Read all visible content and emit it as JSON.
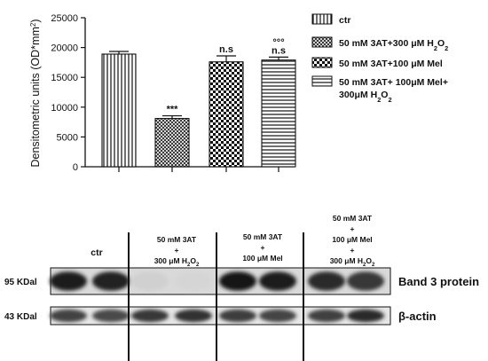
{
  "chart_data": {
    "type": "bar",
    "ylabel": "Densitometric units (OD*mm²)",
    "ylabel_plain": "Densitometric units (OD*mm",
    "ylabel_sup": "2",
    "ylim": [
      0,
      25000
    ],
    "yticks": [
      0,
      5000,
      10000,
      15000,
      20000,
      25000
    ],
    "grid": false,
    "legend_position": "right",
    "categories": [
      "ctr",
      "50 mM 3AT+300 μM H2O2",
      "50 mM 3AT+100 μM Mel",
      "50 mM 3AT+ 100μM Mel+ 300μM H2O2"
    ],
    "values": [
      18900,
      8100,
      17600,
      17900
    ],
    "errors": [
      450,
      450,
      1000,
      500
    ],
    "annotations": [
      {
        "bar": 1,
        "lines": [
          "***"
        ]
      },
      {
        "bar": 2,
        "lines": [
          "n.s"
        ]
      },
      {
        "bar": 3,
        "lines": [
          "°°°",
          "n.s"
        ]
      }
    ],
    "legend": [
      {
        "pattern": "vertical-lines",
        "parts": [
          {
            "t": "ctr"
          }
        ]
      },
      {
        "pattern": "crosshatch",
        "parts": [
          {
            "t": "50 mM 3AT+300 μM H"
          },
          {
            "t": "2",
            "sub": true
          },
          {
            "t": "O"
          },
          {
            "t": "2",
            "sub": true
          }
        ]
      },
      {
        "pattern": "checker",
        "parts": [
          {
            "t": "50 mM  3AT+100 μM Mel"
          }
        ]
      },
      {
        "pattern": "horizontal-lines",
        "parts": [
          {
            "t": "50 mM 3AT+ 100μM Mel+"
          }
        ],
        "line2": [
          {
            "t": "300μM H"
          },
          {
            "t": "2",
            "sub": true
          },
          {
            "t": "O"
          },
          {
            "t": "2",
            "sub": true
          }
        ]
      }
    ]
  },
  "blot": {
    "lanes": [
      {
        "lines": [
          [
            {
              "t": "ctr"
            }
          ]
        ]
      },
      {
        "lines": [
          [
            {
              "t": "50 mM 3AT"
            }
          ],
          [
            {
              "t": "+"
            }
          ],
          [
            {
              "t": "300 μM H"
            },
            {
              "t": "2",
              "sub": true
            },
            {
              "t": "O"
            },
            {
              "t": "2",
              "sub": true
            }
          ]
        ]
      },
      {
        "lines": [
          [
            {
              "t": "50 mM 3AT"
            }
          ],
          [
            {
              "t": "+"
            }
          ],
          [
            {
              "t": "100 μM Mel"
            }
          ]
        ]
      },
      {
        "lines": [
          [
            {
              "t": "50 mM 3AT"
            }
          ],
          [
            {
              "t": "+"
            }
          ],
          [
            {
              "t": "100 μM Mel"
            }
          ],
          [
            {
              "t": "+"
            }
          ],
          [
            {
              "t": "300 μM H"
            },
            {
              "t": "2",
              "sub": true
            },
            {
              "t": "O"
            },
            {
              "t": "2",
              "sub": true
            }
          ]
        ]
      }
    ],
    "rows": [
      {
        "mw": "95 KDal",
        "protein": "Band 3 protein",
        "intensity": [
          0.92,
          0.9,
          0.12,
          0.1,
          0.95,
          0.93,
          0.85,
          0.8
        ]
      },
      {
        "mw": "43 KDal",
        "protein": "β-actin",
        "intensity": [
          0.75,
          0.72,
          0.8,
          0.82,
          0.78,
          0.74,
          0.76,
          0.85
        ]
      }
    ]
  }
}
